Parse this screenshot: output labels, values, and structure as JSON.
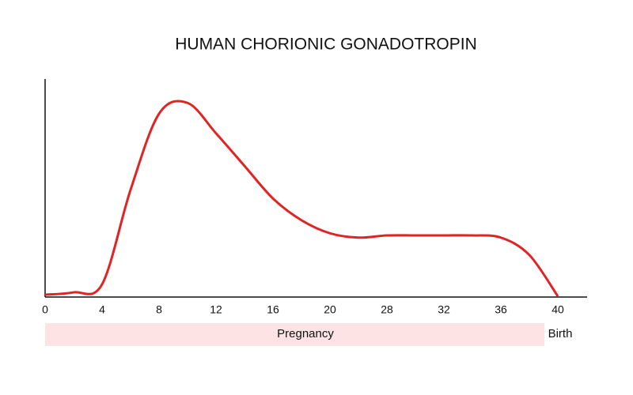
{
  "chart_data": {
    "type": "line",
    "title": "HUMAN CHORIONIC GONADOTROPIN",
    "categories": [
      "0",
      null,
      "4",
      null,
      "8",
      null,
      "12",
      null,
      "16",
      null,
      "20",
      null,
      "28",
      null,
      "32",
      null,
      "36",
      null,
      "40"
    ],
    "values": [
      0.7,
      1.8,
      5.5,
      49,
      84,
      89,
      75,
      60,
      45,
      35,
      29,
      27,
      28,
      28,
      28,
      28,
      27,
      19,
      0
    ],
    "color": "#e02424",
    "ylim": [
      0,
      100
    ],
    "annotations": {
      "period": "Pregnancy",
      "end": "Birth"
    }
  }
}
